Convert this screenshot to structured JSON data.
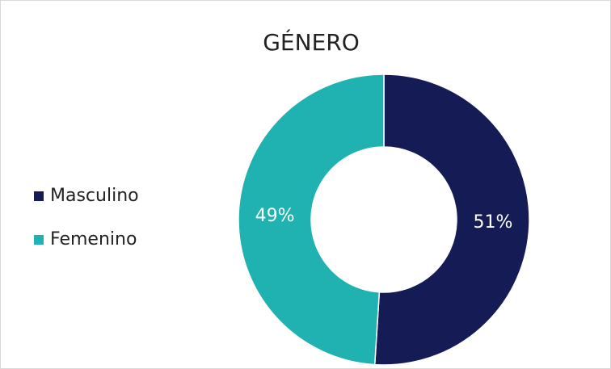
{
  "chart_data": {
    "type": "pie",
    "title": "GÉNERO",
    "categories": [
      "Masculino",
      "Femenino"
    ],
    "values": [
      51,
      49
    ],
    "value_labels": [
      "51%",
      "49%"
    ],
    "colors": [
      "#141b55",
      "#20b2b0"
    ],
    "legend": "left"
  }
}
